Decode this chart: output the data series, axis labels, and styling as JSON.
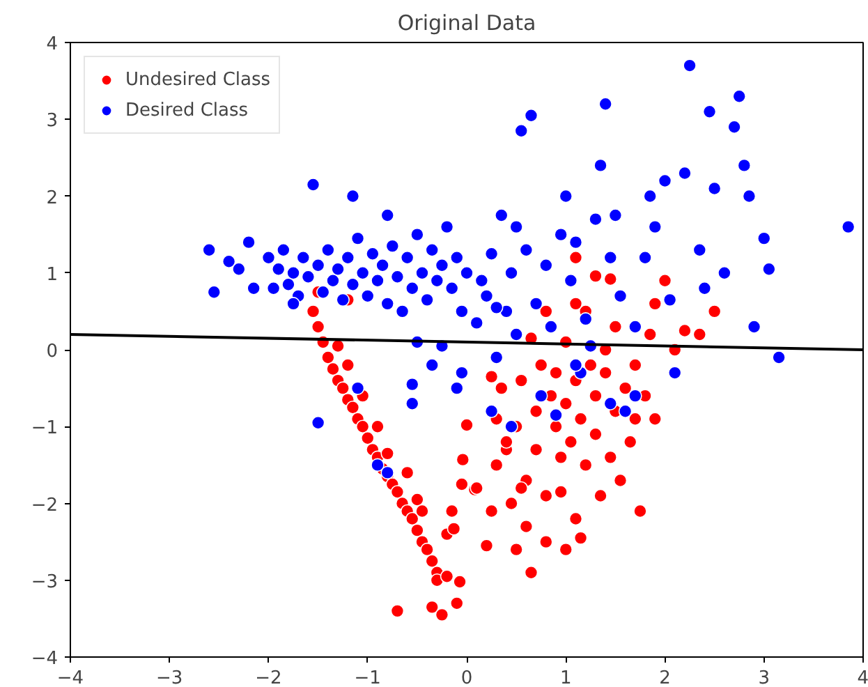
{
  "chart_data": {
    "type": "scatter",
    "title": "Original Data",
    "xlim": [
      -4,
      4
    ],
    "ylim": [
      -4,
      4
    ],
    "xticks": [
      -4,
      -3,
      -2,
      -1,
      0,
      1,
      2,
      3,
      4
    ],
    "yticks": [
      -4,
      -3,
      -2,
      -1,
      0,
      1,
      2,
      3,
      4
    ],
    "grid": false,
    "legend": "top left",
    "series": [
      {
        "name": "Undesired Class",
        "color": "#ff0000",
        "marker": "circle",
        "x": [
          -1.55,
          -1.5,
          -1.45,
          -1.4,
          -1.35,
          -1.3,
          -1.25,
          -1.2,
          -1.15,
          -1.1,
          -1.05,
          -1.0,
          -0.95,
          -0.9,
          -0.85,
          -0.8,
          -0.75,
          -0.7,
          -0.65,
          -0.6,
          -0.55,
          -0.5,
          -0.45,
          -0.4,
          -0.35,
          -0.3,
          -0.3,
          -0.2,
          -0.35,
          -0.25,
          -0.1,
          -0.7,
          -1.3,
          -1.2,
          -1.05,
          -0.9,
          -0.8,
          -0.6,
          -0.5,
          -0.45,
          -0.2,
          -0.15,
          -0.05,
          0.0,
          -0.04,
          0.08,
          -0.13,
          -0.07,
          -1.5,
          -1.2,
          0.1,
          0.2,
          0.25,
          0.3,
          0.3,
          0.35,
          0.4,
          0.45,
          0.5,
          0.5,
          0.55,
          0.6,
          0.6,
          0.65,
          0.7,
          0.7,
          0.75,
          0.8,
          0.8,
          0.85,
          0.9,
          0.9,
          0.95,
          1.0,
          1.0,
          1.0,
          1.05,
          1.1,
          1.1,
          1.15,
          1.2,
          1.2,
          1.25,
          1.3,
          1.3,
          1.35,
          1.4,
          1.4,
          1.45,
          1.5,
          1.5,
          1.55,
          1.6,
          1.65,
          1.7,
          1.75,
          1.8,
          1.85,
          1.9,
          2.0,
          2.1,
          2.2,
          2.35,
          2.5,
          1.1,
          1.3,
          1.45,
          0.25,
          0.65,
          0.8,
          1.1,
          0.4,
          0.55,
          1.15,
          1.7,
          1.9,
          0.95
        ],
        "values": [
          0.5,
          0.3,
          0.1,
          -0.1,
          -0.25,
          -0.4,
          -0.5,
          -0.65,
          -0.75,
          -0.9,
          -1.0,
          -1.15,
          -1.3,
          -1.4,
          -1.55,
          -1.65,
          -1.75,
          -1.85,
          -2.0,
          -2.1,
          -2.2,
          -2.35,
          -2.5,
          -2.6,
          -2.75,
          -2.9,
          -3.0,
          -2.95,
          -3.35,
          -3.45,
          -3.3,
          -3.4,
          0.05,
          -0.2,
          -0.6,
          -1.0,
          -1.35,
          -1.6,
          -1.95,
          -2.1,
          -2.4,
          -2.1,
          -1.75,
          -0.98,
          -1.43,
          -1.82,
          -2.33,
          -3.02,
          0.75,
          0.65,
          -1.8,
          -2.55,
          -2.1,
          -1.5,
          -0.9,
          -0.5,
          -1.3,
          -2.0,
          -2.6,
          -1.0,
          -0.4,
          -1.7,
          -2.3,
          -2.9,
          -0.8,
          -1.3,
          -0.2,
          -2.5,
          -1.9,
          -0.6,
          -1.0,
          -0.3,
          -1.4,
          -2.6,
          -0.7,
          0.1,
          -1.2,
          -0.4,
          -2.2,
          -0.9,
          -1.5,
          0.5,
          -0.2,
          -0.6,
          -1.1,
          -1.9,
          -0.3,
          0.0,
          -1.4,
          -0.8,
          0.3,
          -1.7,
          -0.5,
          -1.2,
          -0.9,
          -2.1,
          -0.6,
          0.2,
          0.6,
          0.9,
          0.0,
          0.25,
          0.2,
          0.5,
          1.2,
          0.96,
          0.92,
          -0.35,
          0.15,
          0.5,
          0.6,
          -1.2,
          -1.8,
          -2.45,
          -0.2,
          -0.9,
          -1.85
        ]
      },
      {
        "name": "Desired Class",
        "color": "#0000ff",
        "marker": "circle",
        "x": [
          -2.6,
          -2.55,
          -2.3,
          -2.2,
          -2.15,
          -2.0,
          -1.95,
          -1.9,
          -1.85,
          -1.8,
          -1.75,
          -1.7,
          -1.65,
          -1.6,
          -1.55,
          -1.5,
          -1.45,
          -1.4,
          -1.35,
          -1.3,
          -1.25,
          -1.2,
          -1.15,
          -1.1,
          -1.05,
          -1.0,
          -0.95,
          -0.9,
          -0.85,
          -0.8,
          -0.75,
          -0.7,
          -0.65,
          -0.6,
          -0.55,
          -0.5,
          -0.45,
          -0.4,
          -0.35,
          -0.3,
          -0.25,
          -0.2,
          -0.15,
          -0.1,
          -0.05,
          0.0,
          -1.15,
          -0.8,
          -0.5,
          -0.35,
          -0.25,
          -0.1,
          -0.05,
          -0.55,
          -0.55,
          -1.5,
          -1.1,
          -0.9,
          -0.8,
          0.1,
          0.2,
          0.25,
          0.3,
          0.35,
          0.4,
          0.45,
          0.5,
          0.55,
          0.6,
          0.65,
          0.7,
          0.75,
          0.8,
          0.85,
          0.9,
          0.95,
          1.0,
          1.05,
          1.1,
          1.15,
          1.2,
          1.3,
          1.35,
          1.4,
          1.45,
          1.5,
          1.55,
          1.6,
          1.7,
          1.8,
          1.85,
          1.9,
          2.0,
          2.05,
          2.1,
          2.2,
          2.25,
          2.35,
          2.4,
          2.45,
          2.5,
          2.6,
          2.7,
          2.75,
          2.8,
          2.85,
          3.0,
          3.05,
          2.9,
          3.15,
          3.85,
          0.15,
          0.5,
          0.3,
          1.25,
          1.45,
          1.1,
          0.25,
          0.45,
          1.7,
          -2.4,
          -1.75
        ],
        "values": [
          1.3,
          0.75,
          1.05,
          1.4,
          0.8,
          1.2,
          0.8,
          1.05,
          1.3,
          0.85,
          1.0,
          0.7,
          1.2,
          0.95,
          2.15,
          1.1,
          0.75,
          1.3,
          0.9,
          1.05,
          0.65,
          1.2,
          0.85,
          1.45,
          1.0,
          0.7,
          1.25,
          0.9,
          1.1,
          0.6,
          1.35,
          0.95,
          0.5,
          1.2,
          0.8,
          1.5,
          1.0,
          0.65,
          1.3,
          0.9,
          1.1,
          1.6,
          0.8,
          1.2,
          0.5,
          1.0,
          2.0,
          1.75,
          0.1,
          -0.2,
          0.05,
          -0.5,
          -0.3,
          -0.45,
          -0.7,
          -0.95,
          -0.5,
          -1.5,
          -1.6,
          0.35,
          0.7,
          1.25,
          -0.1,
          1.75,
          0.5,
          1.0,
          0.2,
          2.85,
          1.3,
          3.05,
          0.6,
          -0.6,
          1.1,
          0.3,
          -0.85,
          1.5,
          2.0,
          0.9,
          1.4,
          -0.3,
          0.4,
          1.7,
          2.4,
          3.2,
          1.2,
          1.75,
          0.7,
          -0.8,
          0.3,
          1.2,
          2.0,
          1.6,
          2.2,
          0.65,
          -0.3,
          2.3,
          3.7,
          1.3,
          0.8,
          3.1,
          2.1,
          1.0,
          2.9,
          3.3,
          2.4,
          2.0,
          1.45,
          1.05,
          0.3,
          -0.1,
          1.6,
          0.9,
          1.6,
          0.55,
          0.05,
          -0.7,
          -0.2,
          -0.8,
          -1.0,
          -0.6,
          1.15,
          0.6
        ]
      },
      {
        "type": "line",
        "marker": "none",
        "color": "#000000",
        "x": [
          -4,
          4
        ],
        "values": [
          0.2,
          0.0
        ]
      }
    ]
  }
}
